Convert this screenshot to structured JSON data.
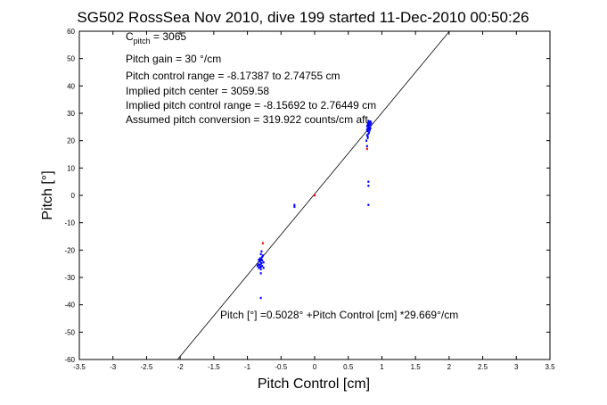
{
  "chart_data": {
    "type": "scatter",
    "title": "SG502 RossSea Nov 2010, dive 199 started 11-Dec-2010 00:50:26",
    "xlabel": "Pitch Control [cm]",
    "ylabel": "Pitch [°]",
    "xlim": [
      -3.5,
      3.5
    ],
    "ylim": [
      -60,
      60
    ],
    "x_ticks": [
      -3.5,
      -3,
      -2.5,
      -2,
      -1.5,
      -1,
      -0.5,
      0,
      0.5,
      1,
      1.5,
      2,
      2.5,
      3,
      3.5
    ],
    "x_tick_labels": [
      "-3.5",
      "-3",
      "-2.5",
      "-2",
      "-1.5",
      "-1",
      "-0.5",
      "0",
      "0.5",
      "1",
      "1.5",
      "2",
      "2.5",
      "3",
      "3.5"
    ],
    "y_ticks": [
      -60,
      -50,
      -40,
      -30,
      -20,
      -10,
      0,
      10,
      20,
      30,
      40,
      50,
      60
    ],
    "y_tick_labels": [
      "-60",
      "-50",
      "-40",
      "-30",
      "-20",
      "-10",
      "0",
      "10",
      "20",
      "30",
      "40",
      "50",
      "60"
    ],
    "grid": false,
    "fit_line": {
      "intercept": 0.5028,
      "slope": 29.669,
      "color": "#000000"
    },
    "annotations": {
      "c_pitch_main": "C",
      "c_pitch_sub": "pitch",
      "c_pitch_value": " = 3065",
      "pitch_gain": "Pitch gain = 30 °/cm",
      "pitch_control_range": "Pitch control range = -8.17387 to 2.74755 cm",
      "implied_center": "Implied pitch center = 3059.58",
      "implied_range": "Implied pitch control range = -8.15692 to 2.76449 cm",
      "assumed_conversion": "Assumed pitch conversion = 319.922 counts/cm aft",
      "fit_equation": "Pitch [°] =0.5028° +Pitch Control [cm] *29.669°/cm"
    },
    "series": [
      {
        "color": "#0000ff",
        "points": [
          [
            0.78,
            22
          ],
          [
            0.79,
            23.5
          ],
          [
            0.8,
            24
          ],
          [
            0.81,
            25
          ],
          [
            0.82,
            26
          ],
          [
            0.83,
            27
          ],
          [
            0.8,
            25.5
          ],
          [
            0.79,
            24.5
          ],
          [
            0.81,
            23
          ],
          [
            0.82,
            24.8
          ],
          [
            0.78,
            25.3
          ],
          [
            0.8,
            22.5
          ],
          [
            0.83,
            25.8
          ],
          [
            0.84,
            26.5
          ],
          [
            0.79,
            21.5
          ],
          [
            0.81,
            26.8
          ],
          [
            0.8,
            27.2
          ],
          [
            0.82,
            23.8
          ],
          [
            0.77,
            20
          ],
          [
            0.78,
            24
          ],
          [
            0.8,
            26.3
          ],
          [
            0.81,
            24.2
          ],
          [
            0.83,
            24.5
          ],
          [
            0.79,
            26
          ],
          [
            0.78,
            18
          ],
          [
            0.8,
            5
          ],
          [
            0.8,
            3.5
          ],
          [
            0.8,
            -3.5
          ],
          [
            0.79,
            21
          ],
          [
            -0.8,
            -25
          ],
          [
            -0.81,
            -24
          ],
          [
            -0.79,
            -23.5
          ],
          [
            -0.82,
            -25.5
          ],
          [
            -0.78,
            -22.5
          ],
          [
            -0.8,
            -26
          ],
          [
            -0.83,
            -26.5
          ],
          [
            -0.77,
            -22
          ],
          [
            -0.81,
            -23
          ],
          [
            -0.79,
            -24.8
          ],
          [
            -0.8,
            -21.5
          ],
          [
            -0.82,
            -24.2
          ],
          [
            -0.84,
            -25.2
          ],
          [
            -0.78,
            -23.8
          ],
          [
            -0.8,
            -27
          ],
          [
            -0.81,
            -26.2
          ],
          [
            -0.79,
            -20.5
          ],
          [
            -0.76,
            -24.5
          ],
          [
            -0.83,
            -23.5
          ],
          [
            -0.78,
            -25.8
          ],
          [
            -0.85,
            -25.8
          ],
          [
            -0.8,
            -28.5
          ],
          [
            -0.8,
            -37.5
          ],
          [
            -0.76,
            -26.5
          ],
          [
            -0.3,
            -3.5
          ],
          [
            -0.3,
            -4.2
          ]
        ]
      },
      {
        "color": "#ff0000",
        "points": [
          [
            0.0,
            0.0
          ],
          [
            -0.77,
            -17.5
          ],
          [
            0.78,
            17
          ]
        ]
      }
    ]
  }
}
